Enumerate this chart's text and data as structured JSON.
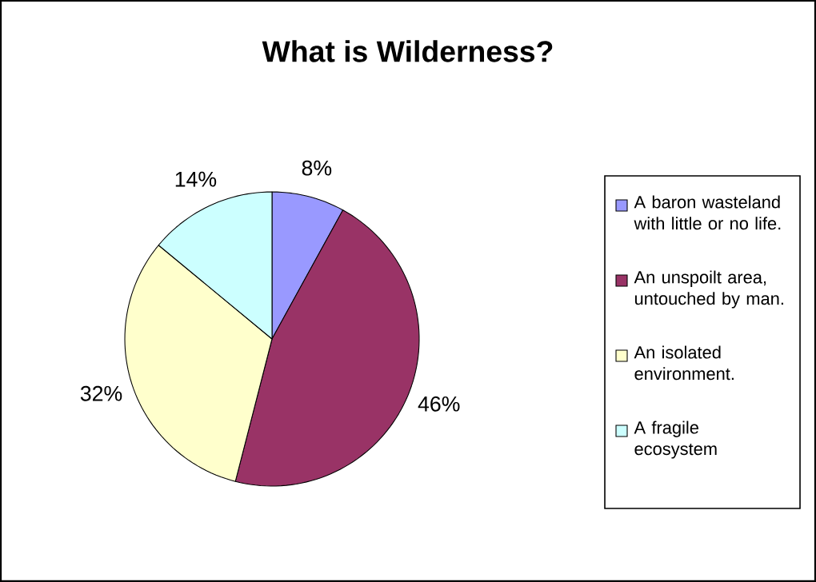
{
  "chart_data": {
    "type": "pie",
    "title": "What is Wilderness?",
    "categories": [
      "A baron wasteland with little or no life.",
      "An unspoilt area, untouched by man.",
      "An isolated environment.",
      "A fragile ecosystem"
    ],
    "values": [
      8,
      46,
      32,
      14
    ],
    "value_labels": [
      "8%",
      "46%",
      "32%",
      "14%"
    ],
    "colors": [
      "#9999ff",
      "#993366",
      "#ffffcc",
      "#ccffff"
    ],
    "legend": "right"
  }
}
